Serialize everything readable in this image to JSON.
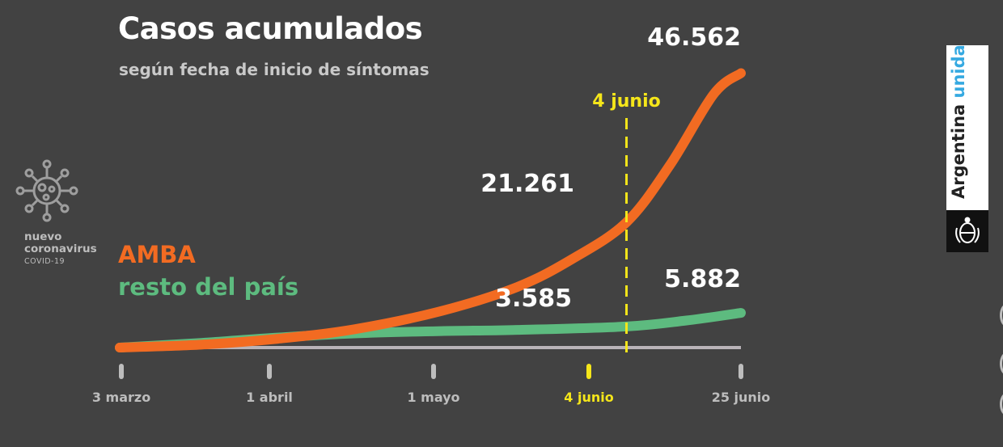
{
  "header": {
    "title": "Casos acumulados",
    "subtitle": "según fecha de inicio de síntomas"
  },
  "legend": {
    "amba": "AMBA",
    "resto": "resto del país"
  },
  "badge": {
    "icon": "coronavirus-icon",
    "line1": "nuevo",
    "line2": "coronavirus",
    "line3": "COVID-19"
  },
  "brand": {
    "text_main": "Argentina",
    "text_accent": "unida",
    "seal_icon": "coat-of-arms-icon"
  },
  "colors": {
    "background": "#424242",
    "amba": "#f26b22",
    "resto": "#5dbb7f",
    "marker": "#f5e61a",
    "brand_accent": "#35a9e1",
    "label": "#c9c9c9"
  },
  "chart_data": {
    "type": "line",
    "title": "Casos acumulados",
    "subtitle": "según fecha de inicio de síntomas",
    "x_ticks": [
      "3 marzo",
      "1 abril",
      "1 mayo",
      "4 junio",
      "25 junio"
    ],
    "x_range": [
      "2020-03-03",
      "2020-06-25"
    ],
    "y_range": [
      0,
      48000
    ],
    "grid": false,
    "legend_placement": "left",
    "series": [
      {
        "name": "AMBA",
        "color": "#f26b22",
        "x": [
          "2020-03-03",
          "2020-03-18",
          "2020-04-01",
          "2020-04-15",
          "2020-05-01",
          "2020-05-15",
          "2020-05-25",
          "2020-06-04",
          "2020-06-12",
          "2020-06-20",
          "2020-06-25"
        ],
        "y": [
          0,
          500,
          1500,
          3100,
          6200,
          10300,
          15000,
          21261,
          31000,
          43000,
          46562
        ]
      },
      {
        "name": "resto del país",
        "color": "#5dbb7f",
        "x": [
          "2020-03-03",
          "2020-03-18",
          "2020-04-01",
          "2020-04-15",
          "2020-05-01",
          "2020-05-15",
          "2020-06-04",
          "2020-06-15",
          "2020-06-25"
        ],
        "y": [
          0,
          800,
          1700,
          2400,
          2800,
          3000,
          3585,
          4600,
          5882
        ]
      }
    ],
    "marker": {
      "x": "2020-06-04",
      "label": "4 junio"
    },
    "annotations": [
      {
        "series": "AMBA",
        "x": "2020-06-25",
        "text": "46.562"
      },
      {
        "series": "AMBA",
        "x": "2020-06-04",
        "text": "21.261"
      },
      {
        "series": "resto del país",
        "x": "2020-06-25",
        "text": "5.882"
      },
      {
        "series": "resto del país",
        "x": "2020-06-04",
        "text": "3.585"
      }
    ]
  }
}
